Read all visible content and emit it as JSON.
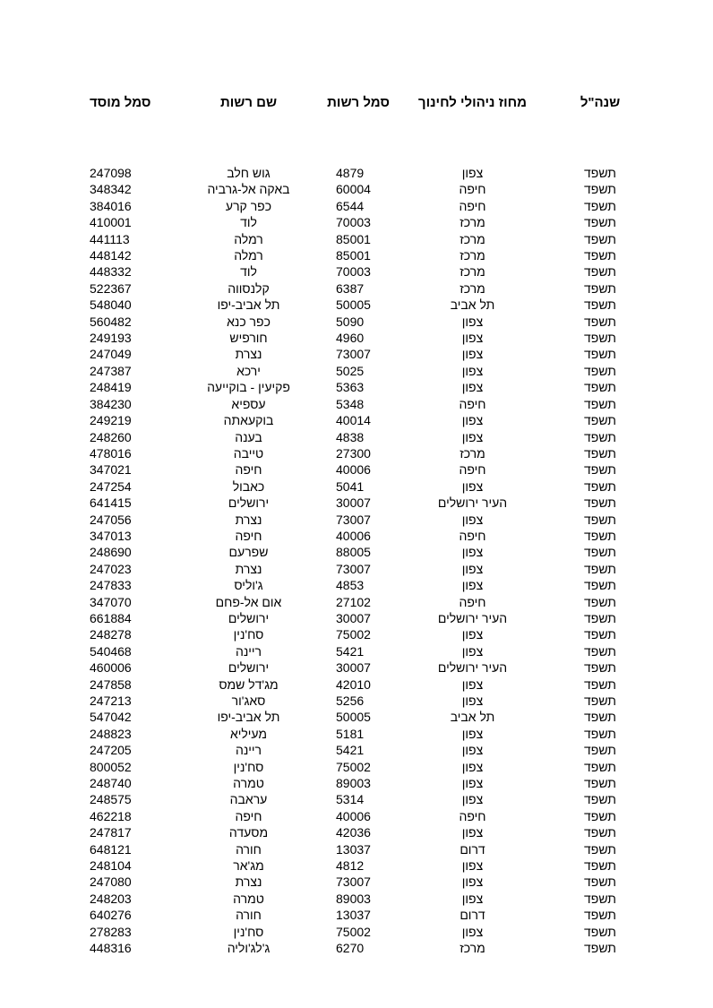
{
  "table": {
    "headers": {
      "year": "שנה\"ל",
      "district": "מחוז ניהולי לחינוך",
      "authority_code": "סמל רשות",
      "authority_name": "שם רשות",
      "institution_code": "סמל מוסד"
    },
    "column_order": [
      "year",
      "district",
      "authority_code",
      "authority_name",
      "institution_code"
    ],
    "rows": [
      {
        "year": "תשפד",
        "district": "צפון",
        "authority_code": "4879",
        "authority_name": "גוש חלב",
        "institution_code": "247098"
      },
      {
        "year": "תשפד",
        "district": "חיפה",
        "authority_code": "60004",
        "authority_name": "באקה אל-גרביה",
        "institution_code": "348342"
      },
      {
        "year": "תשפד",
        "district": "חיפה",
        "authority_code": "6544",
        "authority_name": "כפר קרע",
        "institution_code": "384016"
      },
      {
        "year": "תשפד",
        "district": "מרכז",
        "authority_code": "70003",
        "authority_name": "לוד",
        "institution_code": "410001"
      },
      {
        "year": "תשפד",
        "district": "מרכז",
        "authority_code": "85001",
        "authority_name": "רמלה",
        "institution_code": "441113"
      },
      {
        "year": "תשפד",
        "district": "מרכז",
        "authority_code": "85001",
        "authority_name": "רמלה",
        "institution_code": "448142"
      },
      {
        "year": "תשפד",
        "district": "מרכז",
        "authority_code": "70003",
        "authority_name": "לוד",
        "institution_code": "448332"
      },
      {
        "year": "תשפד",
        "district": "מרכז",
        "authority_code": "6387",
        "authority_name": "קלנסווה",
        "institution_code": "522367"
      },
      {
        "year": "תשפד",
        "district": "תל אביב",
        "authority_code": "50005",
        "authority_name": "תל אביב-יפו",
        "institution_code": "548040"
      },
      {
        "year": "תשפד",
        "district": "צפון",
        "authority_code": "5090",
        "authority_name": "כפר כנא",
        "institution_code": "560482"
      },
      {
        "year": "תשפד",
        "district": "צפון",
        "authority_code": "4960",
        "authority_name": "חורפיש",
        "institution_code": "249193"
      },
      {
        "year": "תשפד",
        "district": "צפון",
        "authority_code": "73007",
        "authority_name": "נצרת",
        "institution_code": "247049"
      },
      {
        "year": "תשפד",
        "district": "צפון",
        "authority_code": "5025",
        "authority_name": "ירכא",
        "institution_code": "247387"
      },
      {
        "year": "תשפד",
        "district": "צפון",
        "authority_code": "5363",
        "authority_name": "פקיעין - בוקייעה",
        "institution_code": "248419"
      },
      {
        "year": "תשפד",
        "district": "חיפה",
        "authority_code": "5348",
        "authority_name": "עספיא",
        "institution_code": "384230"
      },
      {
        "year": "תשפד",
        "district": "צפון",
        "authority_code": "40014",
        "authority_name": "בוקעאתה",
        "institution_code": "249219"
      },
      {
        "year": "תשפד",
        "district": "צפון",
        "authority_code": "4838",
        "authority_name": "בענה",
        "institution_code": "248260"
      },
      {
        "year": "תשפד",
        "district": "מרכז",
        "authority_code": "27300",
        "authority_name": "טייבה",
        "institution_code": "478016"
      },
      {
        "year": "תשפד",
        "district": "חיפה",
        "authority_code": "40006",
        "authority_name": "חיפה",
        "institution_code": "347021"
      },
      {
        "year": "תשפד",
        "district": "צפון",
        "authority_code": "5041",
        "authority_name": "כאבול",
        "institution_code": "247254"
      },
      {
        "year": "תשפד",
        "district": "העיר ירושלים",
        "authority_code": "30007",
        "authority_name": "ירושלים",
        "institution_code": "641415"
      },
      {
        "year": "תשפד",
        "district": "צפון",
        "authority_code": "73007",
        "authority_name": "נצרת",
        "institution_code": "247056"
      },
      {
        "year": "תשפד",
        "district": "חיפה",
        "authority_code": "40006",
        "authority_name": "חיפה",
        "institution_code": "347013"
      },
      {
        "year": "תשפד",
        "district": "צפון",
        "authority_code": "88005",
        "authority_name": "שפרעם",
        "institution_code": "248690"
      },
      {
        "year": "תשפד",
        "district": "צפון",
        "authority_code": "73007",
        "authority_name": "נצרת",
        "institution_code": "247023"
      },
      {
        "year": "תשפד",
        "district": "צפון",
        "authority_code": "4853",
        "authority_name": "ג'וליס",
        "institution_code": "247833"
      },
      {
        "year": "תשפד",
        "district": "חיפה",
        "authority_code": "27102",
        "authority_name": "אום אל-פחם",
        "institution_code": "347070"
      },
      {
        "year": "תשפד",
        "district": "העיר ירושלים",
        "authority_code": "30007",
        "authority_name": "ירושלים",
        "institution_code": "661884"
      },
      {
        "year": "תשפד",
        "district": "צפון",
        "authority_code": "75002",
        "authority_name": "סח'נין",
        "institution_code": "248278"
      },
      {
        "year": "תשפד",
        "district": "צפון",
        "authority_code": "5421",
        "authority_name": "ריינה",
        "institution_code": "540468"
      },
      {
        "year": "תשפד",
        "district": "העיר ירושלים",
        "authority_code": "30007",
        "authority_name": "ירושלים",
        "institution_code": "460006"
      },
      {
        "year": "תשפד",
        "district": "צפון",
        "authority_code": "42010",
        "authority_name": "מג'דל שמס",
        "institution_code": "247858"
      },
      {
        "year": "תשפד",
        "district": "צפון",
        "authority_code": "5256",
        "authority_name": "סאג'ור",
        "institution_code": "247213"
      },
      {
        "year": "תשפד",
        "district": "תל אביב",
        "authority_code": "50005",
        "authority_name": "תל אביב-יפו",
        "institution_code": "547042"
      },
      {
        "year": "תשפד",
        "district": "צפון",
        "authority_code": "5181",
        "authority_name": "מעיליא",
        "institution_code": "248823"
      },
      {
        "year": "תשפד",
        "district": "צפון",
        "authority_code": "5421",
        "authority_name": "ריינה",
        "institution_code": "247205"
      },
      {
        "year": "תשפד",
        "district": "צפון",
        "authority_code": "75002",
        "authority_name": "סח'נין",
        "institution_code": "800052"
      },
      {
        "year": "תשפד",
        "district": "צפון",
        "authority_code": "89003",
        "authority_name": "טמרה",
        "institution_code": "248740"
      },
      {
        "year": "תשפד",
        "district": "צפון",
        "authority_code": "5314",
        "authority_name": "עראבה",
        "institution_code": "248575"
      },
      {
        "year": "תשפד",
        "district": "חיפה",
        "authority_code": "40006",
        "authority_name": "חיפה",
        "institution_code": "462218"
      },
      {
        "year": "תשפד",
        "district": "צפון",
        "authority_code": "42036",
        "authority_name": "מסעדה",
        "institution_code": "247817"
      },
      {
        "year": "תשפד",
        "district": "דרום",
        "authority_code": "13037",
        "authority_name": "חורה",
        "institution_code": "648121"
      },
      {
        "year": "תשפד",
        "district": "צפון",
        "authority_code": "4812",
        "authority_name": "מג'אר",
        "institution_code": "248104"
      },
      {
        "year": "תשפד",
        "district": "צפון",
        "authority_code": "73007",
        "authority_name": "נצרת",
        "institution_code": "247080"
      },
      {
        "year": "תשפד",
        "district": "צפון",
        "authority_code": "89003",
        "authority_name": "טמרה",
        "institution_code": "248203"
      },
      {
        "year": "תשפד",
        "district": "דרום",
        "authority_code": "13037",
        "authority_name": "חורה",
        "institution_code": "640276"
      },
      {
        "year": "תשפד",
        "district": "צפון",
        "authority_code": "75002",
        "authority_name": "סח'נין",
        "institution_code": "278283"
      },
      {
        "year": "תשפד",
        "district": "מרכז",
        "authority_code": "6270",
        "authority_name": "ג'לג'וליה",
        "institution_code": "448316"
      }
    ]
  }
}
